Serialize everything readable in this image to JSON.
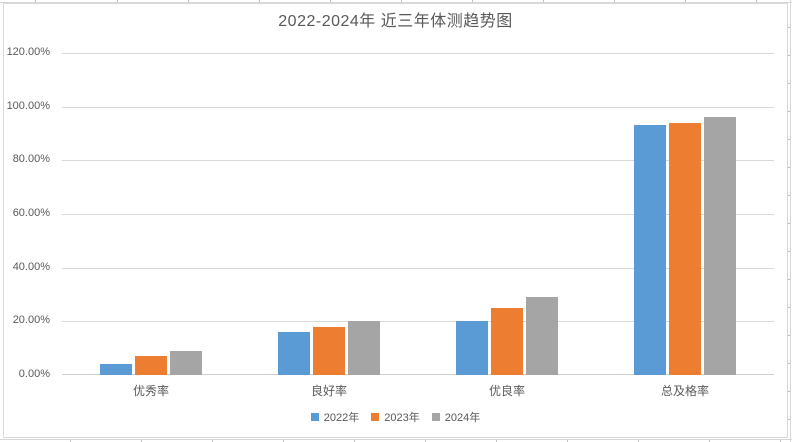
{
  "chart_data": {
    "type": "bar",
    "title": "2022-2024年 近三年体测趋势图",
    "categories": [
      "优秀率",
      "良好率",
      "优良率",
      "总及格率"
    ],
    "series": [
      {
        "name": "2022年",
        "color": "#5B9BD5",
        "values": [
          4,
          16,
          20,
          93
        ]
      },
      {
        "name": "2023年",
        "color": "#ED7D31",
        "values": [
          7,
          18,
          25,
          94
        ]
      },
      {
        "name": "2024年",
        "color": "#A5A5A5",
        "values": [
          9,
          20,
          29,
          96
        ]
      }
    ],
    "unit": "percent",
    "xlabel": "",
    "ylabel": "",
    "ylim": [
      0,
      120
    ],
    "y_ticks": [
      {
        "value": 0,
        "label": "0.00%"
      },
      {
        "value": 20,
        "label": "20.00%"
      },
      {
        "value": 40,
        "label": "40.00%"
      },
      {
        "value": 60,
        "label": "60.00%"
      },
      {
        "value": 80,
        "label": "80.00%"
      },
      {
        "value": 100,
        "label": "100.00%"
      },
      {
        "value": 120,
        "label": "120.00%"
      }
    ],
    "grid": true,
    "legend_position": "bottom",
    "colors": {
      "title_text": "#595959",
      "axis_text": "#595959",
      "gridline": "#D9D9D9",
      "chart_border": "#D9D9D9",
      "plot_background": "#FFFFFF"
    }
  }
}
